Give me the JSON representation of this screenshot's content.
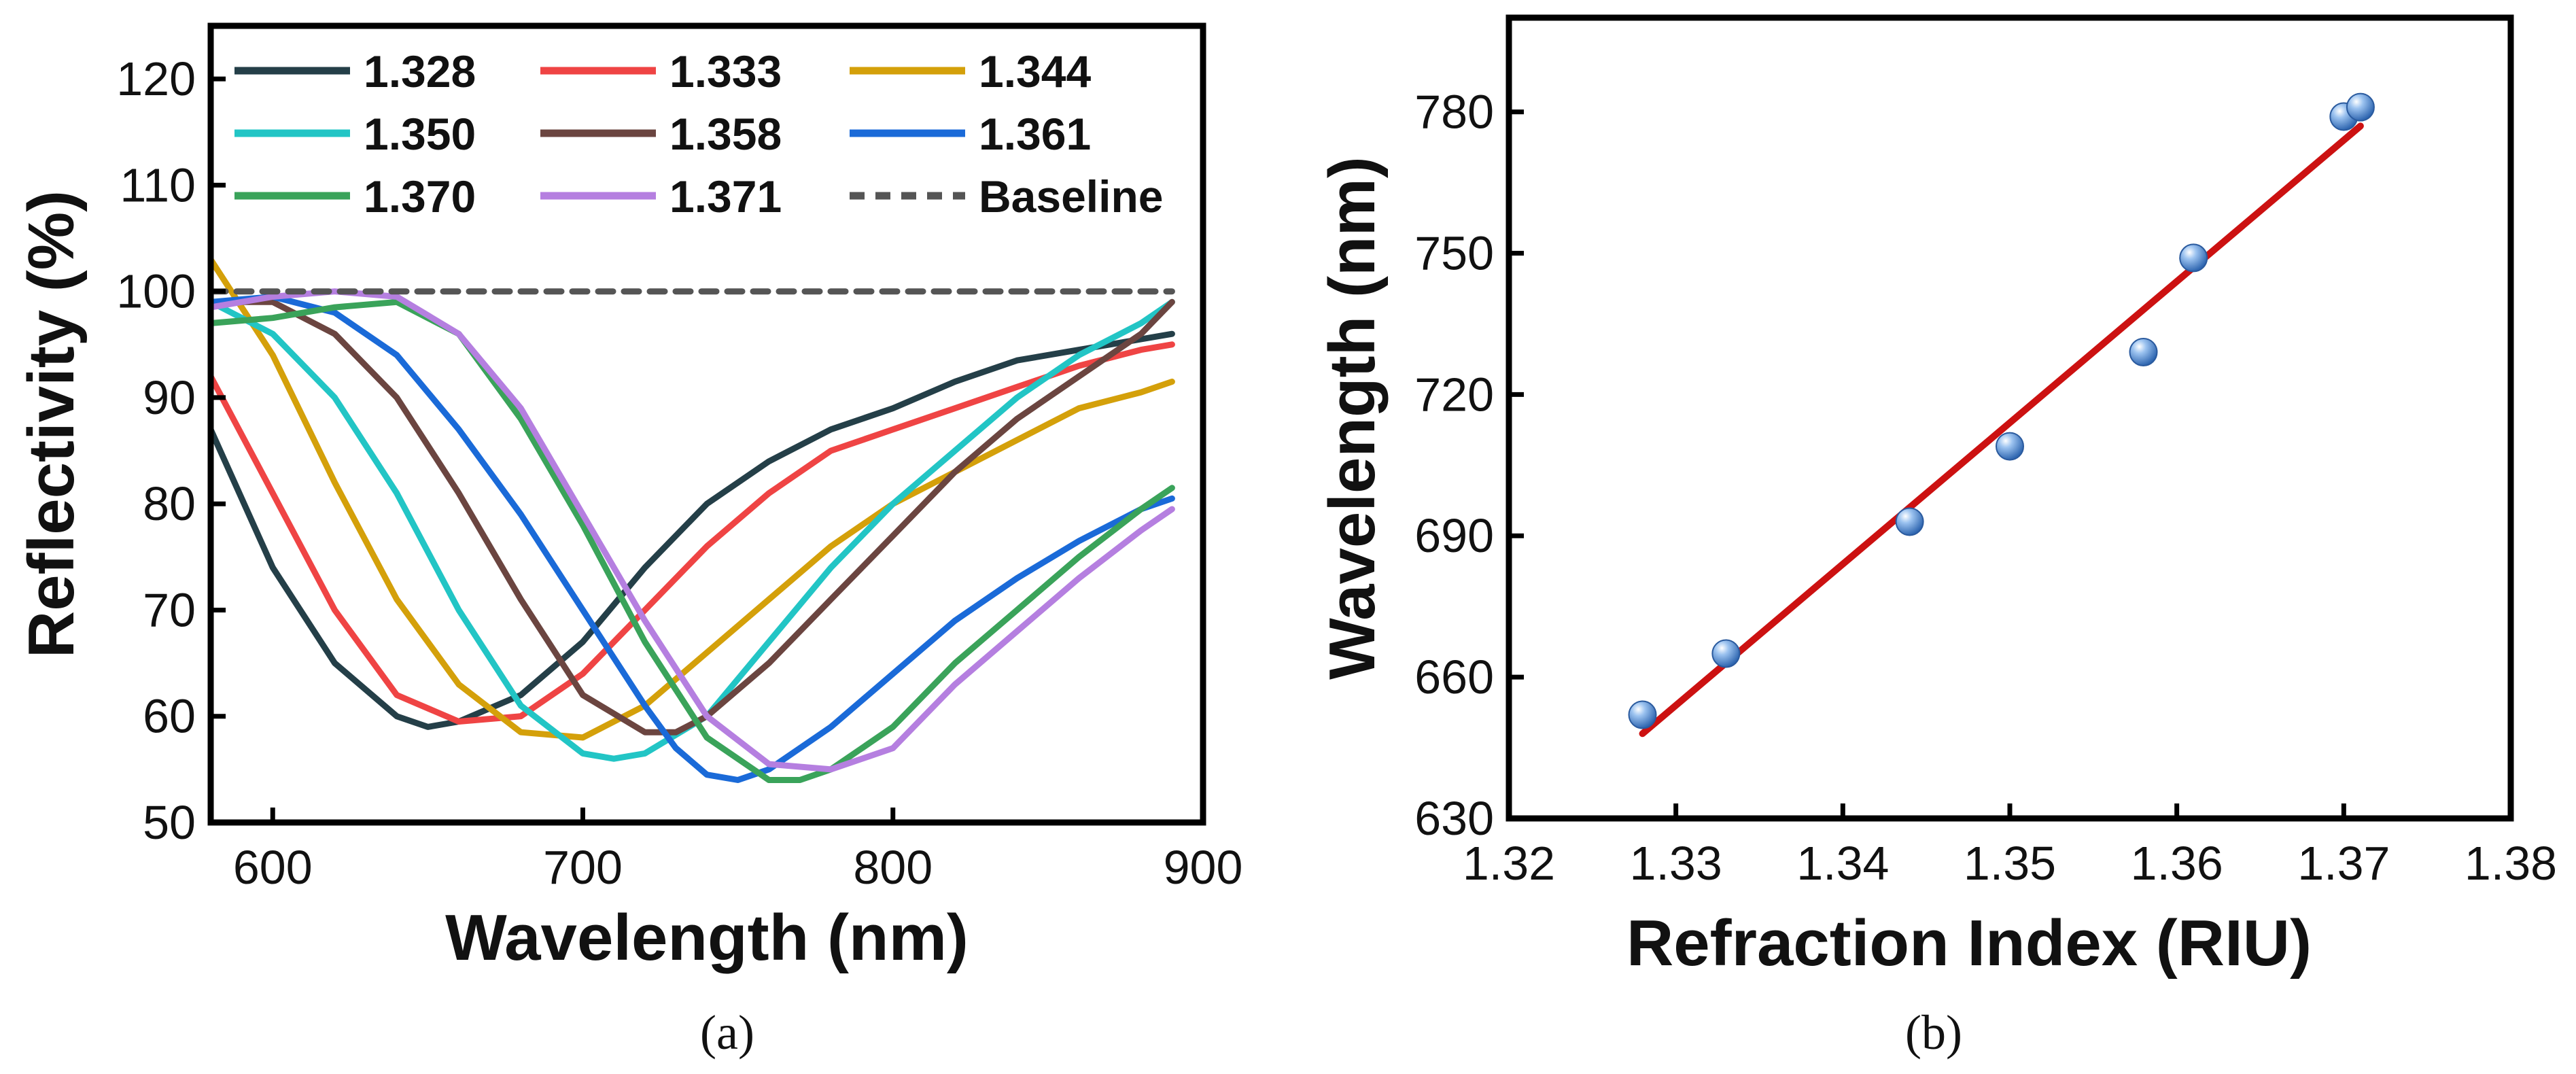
{
  "chart_data": [
    {
      "type": "line",
      "panel_label": "(a)",
      "title": "",
      "xlabel": "Wavelength (nm)",
      "ylabel": "Reflectivity (%)",
      "xlim": [
        580,
        900
      ],
      "ylim": [
        50,
        125
      ],
      "xticks": [
        600,
        700,
        800,
        900
      ],
      "yticks": [
        50,
        60,
        70,
        80,
        90,
        100,
        110,
        120
      ],
      "legend_position": "top",
      "series": [
        {
          "name": "1.328",
          "color": "#243f48",
          "style": "solid",
          "x": [
            580,
            600,
            620,
            640,
            650,
            660,
            680,
            700,
            720,
            740,
            760,
            780,
            800,
            820,
            840,
            860,
            880,
            890
          ],
          "y": [
            87,
            74,
            65,
            60,
            59,
            59.5,
            62,
            67,
            74,
            80,
            84,
            87,
            89,
            91.5,
            93.5,
            94.5,
            95.5,
            96
          ]
        },
        {
          "name": "1.333",
          "color": "#ef4444",
          "style": "solid",
          "x": [
            580,
            600,
            620,
            640,
            660,
            680,
            700,
            720,
            740,
            760,
            780,
            800,
            820,
            840,
            860,
            880,
            890
          ],
          "y": [
            92,
            81,
            70,
            62,
            59.5,
            60,
            64,
            70,
            76,
            81,
            85,
            87,
            89,
            91,
            93,
            94.5,
            95
          ]
        },
        {
          "name": "1.344",
          "color": "#d4a00a",
          "style": "solid",
          "x": [
            580,
            600,
            620,
            640,
            660,
            680,
            700,
            720,
            740,
            760,
            780,
            800,
            820,
            840,
            860,
            880,
            890
          ],
          "y": [
            103,
            94,
            82,
            71,
            63,
            58.5,
            58,
            61,
            66,
            71,
            76,
            80,
            83,
            86,
            89,
            90.5,
            91.5
          ]
        },
        {
          "name": "1.350",
          "color": "#22c5c5",
          "style": "solid",
          "x": [
            580,
            600,
            620,
            640,
            660,
            680,
            700,
            710,
            720,
            740,
            760,
            780,
            800,
            820,
            840,
            860,
            880,
            890
          ],
          "y": [
            99,
            96,
            90,
            81,
            70,
            61,
            56.5,
            56,
            56.5,
            60,
            67,
            74,
            80,
            85,
            90,
            94,
            97,
            99
          ]
        },
        {
          "name": "1.358",
          "color": "#6b4540",
          "style": "solid",
          "x": [
            580,
            600,
            620,
            640,
            660,
            680,
            700,
            720,
            730,
            740,
            760,
            780,
            800,
            820,
            840,
            860,
            880,
            890
          ],
          "y": [
            99,
            99,
            96,
            90,
            81,
            71,
            62,
            58.5,
            58.5,
            60,
            65,
            71,
            77,
            83,
            88,
            92,
            96,
            99
          ]
        },
        {
          "name": "1.361",
          "color": "#1a6ad8",
          "style": "solid",
          "x": [
            580,
            600,
            620,
            640,
            660,
            680,
            700,
            720,
            730,
            740,
            750,
            760,
            780,
            800,
            820,
            840,
            860,
            880,
            890
          ],
          "y": [
            99,
            99.5,
            98,
            94,
            87,
            79,
            70,
            61,
            57,
            54.5,
            54,
            55,
            59,
            64,
            69,
            73,
            76.5,
            79.5,
            80.5
          ]
        },
        {
          "name": "1.370",
          "color": "#3aa35a",
          "style": "solid",
          "x": [
            580,
            600,
            620,
            640,
            660,
            680,
            700,
            720,
            740,
            760,
            770,
            780,
            800,
            820,
            840,
            860,
            880,
            890
          ],
          "y": [
            97,
            97.5,
            98.5,
            99,
            96,
            88,
            78,
            67,
            58,
            54,
            54,
            55,
            59,
            65,
            70,
            75,
            79.5,
            81.5
          ]
        },
        {
          "name": "1.371",
          "color": "#b57fe0",
          "style": "solid",
          "x": [
            580,
            600,
            620,
            640,
            660,
            680,
            700,
            720,
            740,
            760,
            780,
            800,
            820,
            840,
            860,
            880,
            890
          ],
          "y": [
            98.5,
            99.5,
            100,
            99.5,
            96,
            89,
            79,
            69,
            60,
            55.5,
            55,
            57,
            63,
            68,
            73,
            77.5,
            79.5
          ]
        },
        {
          "name": "Baseline",
          "color": "#555555",
          "style": "dashed",
          "x": [
            580,
            890
          ],
          "y": [
            100,
            100
          ]
        }
      ]
    },
    {
      "type": "scatter",
      "panel_label": "(b)",
      "title": "",
      "xlabel": "Refraction Index (RIU)",
      "ylabel": "Wavelength (nm)",
      "xlim": [
        1.32,
        1.38
      ],
      "ylim": [
        630,
        800
      ],
      "xticks": [
        "1.32",
        "1.33",
        "1.34",
        "1.35",
        "1.36",
        "1.37",
        "1.38"
      ],
      "yticks": [
        630,
        660,
        690,
        720,
        750,
        780
      ],
      "points": {
        "x": [
          1.328,
          1.333,
          1.344,
          1.35,
          1.358,
          1.361,
          1.37,
          1.371
        ],
        "y": [
          652,
          665,
          693,
          709,
          729,
          749,
          779,
          781
        ],
        "color": "#6fa3e0"
      },
      "fit_line": {
        "x": [
          1.328,
          1.371
        ],
        "y": [
          648,
          777
        ],
        "color": "#cc1111"
      }
    }
  ]
}
